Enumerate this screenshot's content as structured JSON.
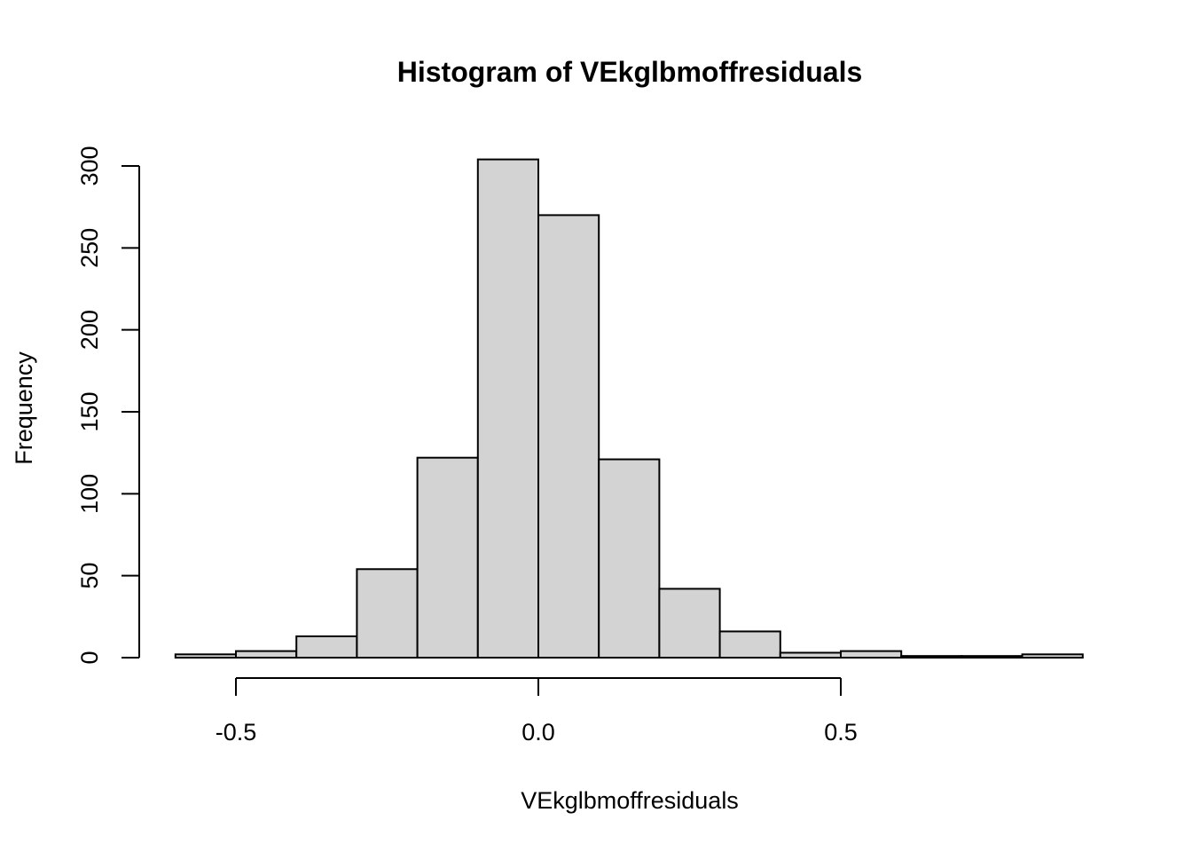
{
  "chart_data": {
    "type": "bar",
    "title": "Histogram of VEkglbmoffresiduals",
    "xlabel": "VEkglbmoffresiduals",
    "ylabel": "Frequency",
    "bin_edges": [
      -0.6,
      -0.5,
      -0.4,
      -0.3,
      -0.2,
      -0.1,
      0.0,
      0.1,
      0.2,
      0.3,
      0.4,
      0.5,
      0.6,
      0.7,
      0.8,
      0.9
    ],
    "values": [
      2,
      4,
      13,
      54,
      122,
      304,
      270,
      121,
      42,
      16,
      3,
      4,
      1,
      1,
      2
    ],
    "xlim": [
      -0.6,
      0.9
    ],
    "ylim": [
      0,
      300
    ],
    "x_ticks": [
      -0.5,
      0.0,
      0.5
    ],
    "x_tick_labels": [
      "-0.5",
      "0.0",
      "0.5"
    ],
    "y_ticks": [
      0,
      50,
      100,
      150,
      200,
      250,
      300
    ],
    "y_tick_labels": [
      "0",
      "50",
      "100",
      "150",
      "200",
      "250",
      "300"
    ],
    "bar_color": "#d3d3d3",
    "grid": false,
    "legend": "none"
  }
}
